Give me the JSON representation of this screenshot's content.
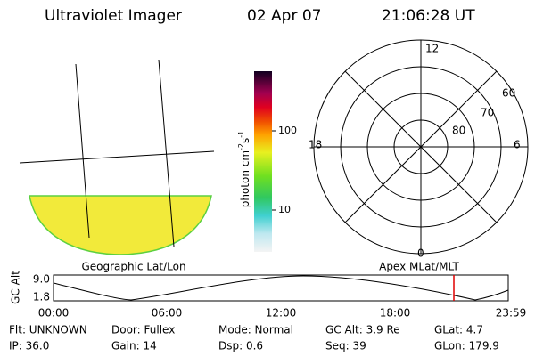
{
  "header": {
    "title": "Ultraviolet Imager",
    "date": "02 Apr 07",
    "time": "21:06:28 UT"
  },
  "left_panel": {
    "label": "Geographic Lat/Lon"
  },
  "colorbar": {
    "label": "photon cm",
    "exp1": "-2",
    "unit2": "s",
    "exp2": "-1",
    "ticks": [
      "100",
      "10"
    ]
  },
  "polar": {
    "label": "Apex MLat/MLT",
    "mlt": [
      "12",
      "18",
      "6",
      "0"
    ],
    "mlat": [
      "60",
      "70",
      "80"
    ]
  },
  "altitude": {
    "label": "GC Alt",
    "yticks": [
      "9.0",
      "1.8"
    ],
    "xticks": [
      "00:00",
      "06:00",
      "12:00",
      "18:00",
      "23:59"
    ]
  },
  "info": [
    [
      {
        "text": "Flt: UNKNOWN"
      },
      {
        "text": "Door: Fullex"
      },
      {
        "text": "Mode: Normal"
      },
      {
        "text": "GC Alt: 3.9 Re"
      },
      {
        "text": "GLat: 4.7"
      }
    ],
    [
      {
        "text": "IP: 36.0"
      },
      {
        "text": "Gain: 14"
      },
      {
        "text": "Dsp: 0.6"
      },
      {
        "text": "Seq: 39"
      },
      {
        "text": "GLon: 179.9"
      }
    ]
  ]
}
